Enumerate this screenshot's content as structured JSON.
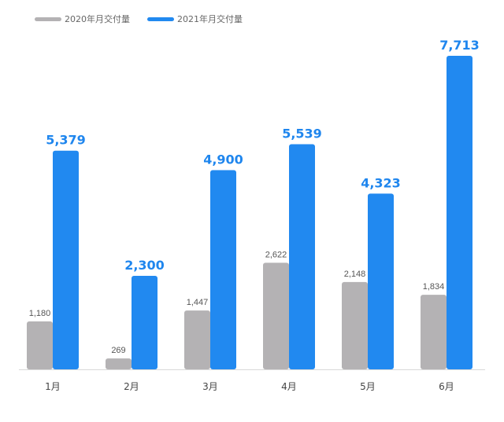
{
  "chart_data": {
    "type": "bar",
    "categories": [
      "1月",
      "2月",
      "3月",
      "4月",
      "5月",
      "6月"
    ],
    "series": [
      {
        "name": "2020年月交付量",
        "values": [
          1180,
          269,
          1447,
          2622,
          2148,
          1834
        ],
        "labels": [
          "1,180",
          "269",
          "1,447",
          "2,622",
          "2,148",
          "1,834"
        ],
        "color": "#b4b2b4"
      },
      {
        "name": "2021年月交付量",
        "values": [
          5379,
          2300,
          4900,
          5539,
          4323,
          7713
        ],
        "labels": [
          "5,379",
          "2,300",
          "4,900",
          "5,539",
          "4,323",
          "7,713"
        ],
        "color": "#2189f0"
      }
    ],
    "title": "",
    "xlabel": "",
    "ylabel": "",
    "ylim": [
      0,
      7713
    ],
    "grid": false,
    "legend_position": "top-left"
  }
}
